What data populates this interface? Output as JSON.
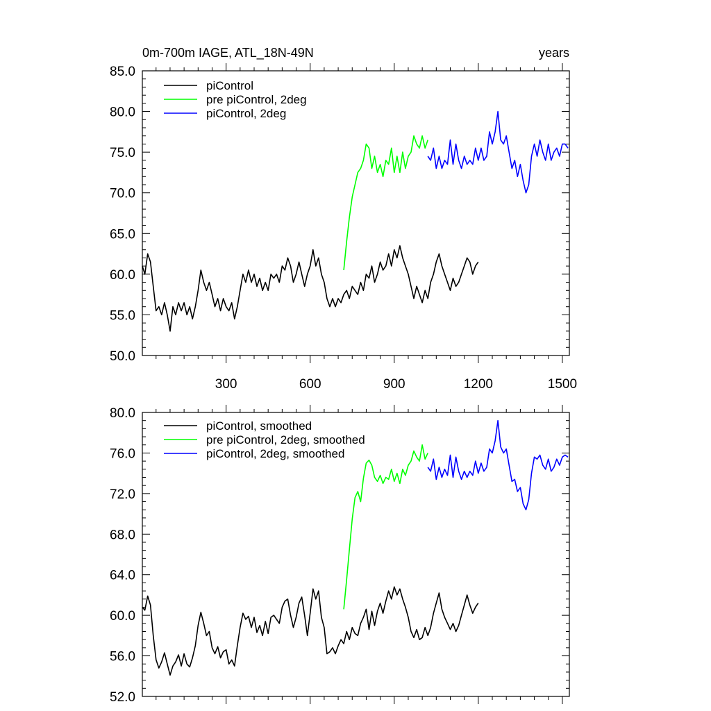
{
  "chart_data": [
    {
      "type": "line",
      "title": "0m-700m IAGE, ATL_18N-49N",
      "title_right": "years",
      "xlim": [
        1,
        1525
      ],
      "ylim": [
        50,
        85
      ],
      "xticks": [
        300,
        600,
        900,
        1200,
        1500
      ],
      "yticks": [
        50,
        55,
        60,
        65,
        70,
        75,
        80,
        85
      ],
      "ytick_labels": [
        "50.0",
        "55.0",
        "60.0",
        "65.0",
        "70.0",
        "75.0",
        "80.0",
        "85.0"
      ],
      "legend": [
        "piControl",
        "pre piControl, 2deg",
        "piControl, 2deg"
      ],
      "series": [
        {
          "name": "piControl",
          "color": "#000000",
          "x": [
            1,
            10,
            20,
            30,
            40,
            50,
            60,
            70,
            80,
            90,
            100,
            110,
            120,
            130,
            140,
            150,
            160,
            170,
            180,
            190,
            200,
            210,
            220,
            230,
            240,
            250,
            260,
            270,
            280,
            290,
            300,
            310,
            320,
            330,
            340,
            350,
            360,
            370,
            380,
            390,
            400,
            410,
            420,
            430,
            440,
            450,
            460,
            470,
            480,
            490,
            500,
            510,
            520,
            530,
            540,
            550,
            560,
            570,
            580,
            590,
            600,
            610,
            620,
            630,
            640,
            650,
            660,
            670,
            680,
            690,
            700,
            710,
            720,
            730,
            740,
            750,
            760,
            770,
            780,
            790,
            800,
            810,
            820,
            830,
            840,
            850,
            860,
            870,
            880,
            890,
            900,
            910,
            920,
            930,
            940,
            950,
            960,
            970,
            980,
            990,
            1000,
            1010,
            1020,
            1030,
            1040,
            1050,
            1060,
            1070,
            1080,
            1090,
            1100,
            1110,
            1120,
            1130,
            1140,
            1150,
            1160,
            1170,
            1180,
            1190,
            1200
          ],
          "y": [
            61.0,
            60.0,
            62.5,
            61.5,
            58.5,
            55.5,
            56.0,
            55.0,
            56.5,
            55.0,
            53.0,
            56.0,
            55.0,
            56.5,
            55.5,
            56.5,
            55.0,
            56.0,
            54.5,
            56.0,
            58.0,
            60.5,
            59.0,
            58.0,
            59.0,
            57.5,
            56.0,
            57.0,
            55.5,
            57.0,
            56.0,
            55.5,
            56.5,
            54.5,
            56.0,
            58.0,
            60.0,
            59.0,
            60.5,
            59.0,
            60.0,
            58.5,
            59.5,
            58.0,
            59.0,
            58.0,
            60.0,
            59.5,
            60.0,
            59.0,
            61.0,
            60.5,
            62.0,
            61.0,
            59.0,
            60.0,
            61.5,
            60.0,
            58.5,
            60.0,
            61.0,
            63.0,
            61.0,
            62.0,
            60.0,
            59.0,
            57.0,
            56.0,
            57.0,
            56.0,
            57.0,
            56.5,
            57.5,
            58.0,
            57.0,
            58.5,
            58.0,
            57.5,
            59.0,
            58.0,
            60.0,
            59.5,
            61.0,
            59.0,
            60.0,
            61.5,
            60.5,
            61.0,
            62.5,
            61.0,
            63.0,
            62.0,
            63.5,
            62.0,
            61.0,
            60.0,
            58.5,
            57.0,
            58.5,
            57.5,
            56.5,
            58.0,
            57.0,
            59.0,
            60.0,
            61.5,
            62.5,
            61.0,
            60.0,
            59.0,
            58.0,
            59.5,
            58.5,
            59.0,
            60.0,
            61.0,
            62.0,
            61.5,
            60.0,
            61.0,
            61.5
          ],
          "y_note": "approximate trace read from the plot"
        },
        {
          "name": "pre piControl, 2deg",
          "color": "#00ff00",
          "x": [
            720,
            730,
            740,
            750,
            760,
            770,
            780,
            790,
            800,
            810,
            820,
            830,
            840,
            850,
            860,
            870,
            880,
            890,
            900,
            910,
            920,
            930,
            940,
            950,
            960,
            970,
            980,
            990,
            1000,
            1010,
            1020
          ],
          "y": [
            60.5,
            64.0,
            67.0,
            69.5,
            71.0,
            72.5,
            73.0,
            74.0,
            76.0,
            75.5,
            73.0,
            74.5,
            72.5,
            73.5,
            72.0,
            74.0,
            73.5,
            75.5,
            72.5,
            74.5,
            72.5,
            75.0,
            73.0,
            74.5,
            75.0,
            77.0,
            76.0,
            75.5,
            77.0,
            75.5,
            76.5
          ]
        },
        {
          "name": "piControl, 2deg",
          "color": "#0000ff",
          "x": [
            1020,
            1030,
            1040,
            1050,
            1060,
            1070,
            1080,
            1090,
            1100,
            1110,
            1120,
            1130,
            1140,
            1150,
            1160,
            1170,
            1180,
            1190,
            1200,
            1210,
            1220,
            1230,
            1240,
            1250,
            1260,
            1270,
            1280,
            1290,
            1300,
            1310,
            1320,
            1330,
            1340,
            1350,
            1360,
            1370,
            1380,
            1390,
            1400,
            1410,
            1420,
            1430,
            1440,
            1450,
            1460,
            1470,
            1480,
            1490,
            1500,
            1510,
            1520
          ],
          "y": [
            74.5,
            74.0,
            75.5,
            73.0,
            74.5,
            73.0,
            74.0,
            73.5,
            76.5,
            73.5,
            76.0,
            74.0,
            73.0,
            74.5,
            73.5,
            74.0,
            73.5,
            75.5,
            74.0,
            75.5,
            74.0,
            74.5,
            77.5,
            76.0,
            77.5,
            80.0,
            76.5,
            76.0,
            77.0,
            75.0,
            73.0,
            74.0,
            72.0,
            73.5,
            71.5,
            70.0,
            71.0,
            74.5,
            76.0,
            74.5,
            76.5,
            75.0,
            74.0,
            76.0,
            74.0,
            75.0,
            75.5,
            74.5,
            76.0,
            76.0,
            75.5
          ]
        }
      ]
    },
    {
      "type": "line",
      "xlim": [
        1,
        1525
      ],
      "ylim": [
        52,
        80
      ],
      "xticks": [
        300,
        600,
        900,
        1200,
        1500
      ],
      "yticks": [
        52,
        56,
        60,
        64,
        68,
        72,
        76,
        80
      ],
      "ytick_labels": [
        "52.0",
        "56.0",
        "60.0",
        "64.0",
        "68.0",
        "72.0",
        "76.0",
        "80.0"
      ],
      "legend": [
        "piControl, smoothed",
        "pre piControl, 2deg, smoothed",
        "piControl, 2deg, smoothed"
      ],
      "series": [
        {
          "name": "piControl, smoothed",
          "color": "#000000",
          "x": [
            1,
            10,
            20,
            30,
            40,
            50,
            60,
            70,
            80,
            90,
            100,
            110,
            120,
            130,
            140,
            150,
            160,
            170,
            180,
            190,
            200,
            210,
            220,
            230,
            240,
            250,
            260,
            270,
            280,
            290,
            300,
            310,
            320,
            330,
            340,
            350,
            360,
            370,
            380,
            390,
            400,
            410,
            420,
            430,
            440,
            450,
            460,
            470,
            480,
            490,
            500,
            510,
            520,
            530,
            540,
            550,
            560,
            570,
            580,
            590,
            600,
            610,
            620,
            630,
            640,
            650,
            660,
            670,
            680,
            690,
            700,
            710,
            720,
            730,
            740,
            750,
            760,
            770,
            780,
            790,
            800,
            810,
            820,
            830,
            840,
            850,
            860,
            870,
            880,
            890,
            900,
            910,
            920,
            930,
            940,
            950,
            960,
            970,
            980,
            990,
            1000,
            1010,
            1020,
            1030,
            1040,
            1050,
            1060,
            1070,
            1080,
            1090,
            1100,
            1110,
            1120,
            1130,
            1140,
            1150,
            1160,
            1170,
            1180,
            1190,
            1200
          ],
          "y": [
            60.8,
            60.5,
            61.9,
            61.0,
            58.0,
            55.6,
            54.8,
            55.4,
            56.3,
            55.2,
            54.1,
            55.0,
            55.4,
            56.1,
            55.0,
            56.2,
            55.2,
            54.9,
            55.8,
            57.0,
            59.0,
            60.3,
            59.2,
            58.0,
            58.4,
            56.8,
            56.2,
            56.9,
            55.8,
            56.4,
            56.6,
            55.2,
            55.6,
            55.0,
            57.0,
            58.8,
            60.2,
            59.6,
            59.9,
            58.8,
            59.8,
            58.3,
            59.0,
            58.0,
            59.4,
            58.2,
            59.8,
            60.0,
            59.6,
            59.2,
            60.8,
            61.4,
            61.6,
            60.0,
            58.8,
            59.8,
            61.2,
            61.8,
            60.0,
            58.0,
            60.2,
            62.6,
            61.6,
            62.4,
            59.8,
            58.8,
            56.2,
            56.4,
            56.8,
            56.2,
            57.0,
            57.6,
            57.2,
            58.4,
            57.6,
            58.8,
            58.2,
            58.0,
            59.2,
            59.8,
            60.6,
            58.6,
            60.4,
            59.0,
            60.4,
            61.2,
            60.2,
            61.4,
            62.4,
            61.6,
            62.8,
            62.0,
            62.6,
            61.6,
            60.8,
            59.8,
            58.4,
            57.8,
            58.6,
            57.6,
            57.8,
            58.8,
            58.0,
            58.8,
            60.2,
            61.2,
            62.2,
            60.6,
            59.8,
            59.2,
            58.6,
            59.2,
            58.4,
            59.0,
            60.0,
            61.0,
            62.0,
            61.0,
            60.2,
            60.8,
            61.2
          ]
        },
        {
          "name": "pre piControl, 2deg, smoothed",
          "color": "#00ff00",
          "x": [
            720,
            730,
            740,
            750,
            760,
            770,
            780,
            790,
            800,
            810,
            820,
            830,
            840,
            850,
            860,
            870,
            880,
            890,
            900,
            910,
            920,
            930,
            940,
            950,
            960,
            970,
            980,
            990,
            1000,
            1010,
            1020
          ],
          "y": [
            60.6,
            63.5,
            66.5,
            69.5,
            71.6,
            72.2,
            71.2,
            73.5,
            75.0,
            75.3,
            74.8,
            73.6,
            73.2,
            73.8,
            73.0,
            73.6,
            73.4,
            74.4,
            73.2,
            74.0,
            73.0,
            74.4,
            73.8,
            74.8,
            75.2,
            76.2,
            75.6,
            75.2,
            76.8,
            75.4,
            76.0
          ]
        },
        {
          "name": "piControl, 2deg, smoothed",
          "color": "#0000ff",
          "x": [
            1020,
            1030,
            1040,
            1050,
            1060,
            1070,
            1080,
            1090,
            1100,
            1110,
            1120,
            1130,
            1140,
            1150,
            1160,
            1170,
            1180,
            1190,
            1200,
            1210,
            1220,
            1230,
            1240,
            1250,
            1260,
            1270,
            1280,
            1290,
            1300,
            1310,
            1320,
            1330,
            1340,
            1350,
            1360,
            1370,
            1380,
            1390,
            1400,
            1410,
            1420,
            1430,
            1440,
            1450,
            1460,
            1470,
            1480,
            1490,
            1500,
            1510,
            1520
          ],
          "y": [
            74.6,
            74.2,
            75.4,
            73.4,
            74.6,
            73.6,
            74.4,
            73.8,
            75.8,
            73.6,
            75.6,
            74.2,
            73.4,
            74.2,
            73.6,
            74.2,
            73.8,
            75.2,
            74.0,
            75.0,
            74.2,
            74.6,
            76.4,
            76.0,
            77.2,
            79.2,
            76.6,
            76.0,
            76.4,
            74.8,
            73.2,
            73.4,
            72.2,
            72.6,
            71.0,
            70.4,
            71.4,
            74.0,
            75.6,
            75.4,
            75.8,
            74.8,
            74.4,
            75.4,
            74.2,
            74.6,
            75.4,
            74.8,
            75.6,
            75.8,
            75.6
          ]
        }
      ]
    }
  ]
}
